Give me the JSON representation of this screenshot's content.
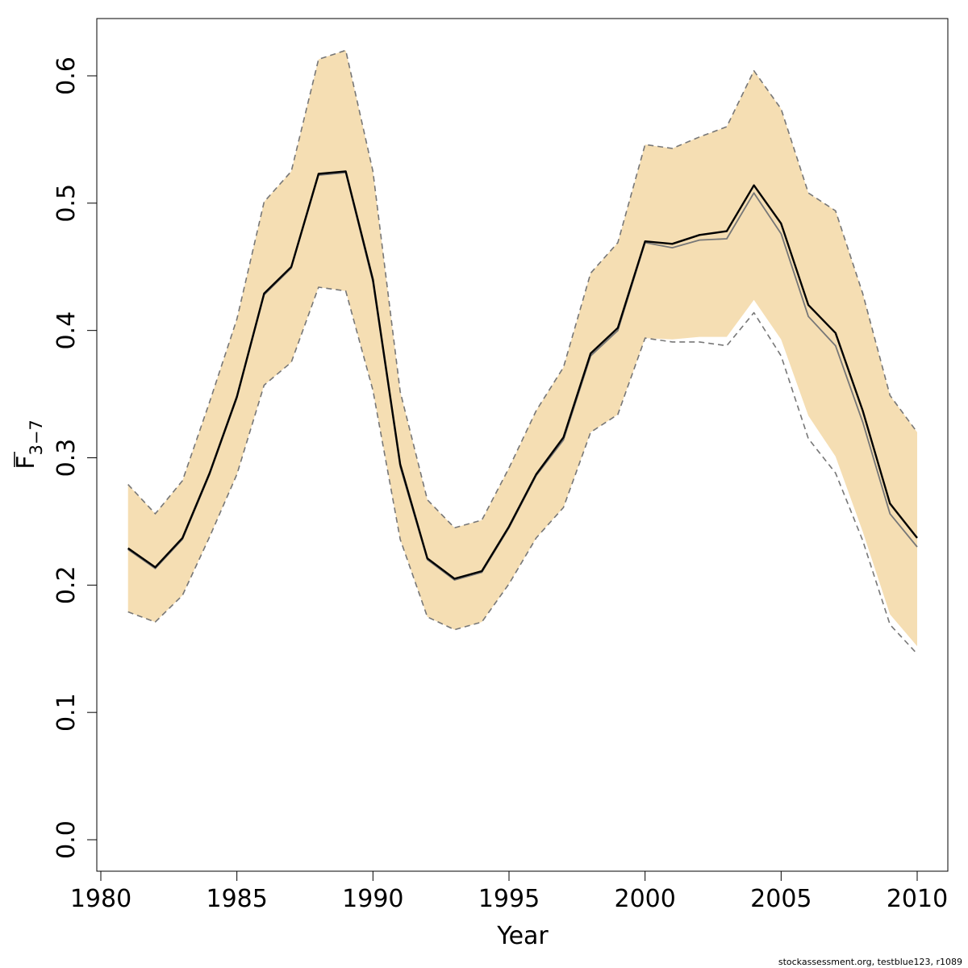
{
  "chart_data": {
    "type": "line",
    "xlabel": "Year",
    "ylabel": {
      "main": "F",
      "subscript": "3−7"
    },
    "xlim": [
      1980,
      2010
    ],
    "ylim": [
      0,
      0.6
    ],
    "x_ticks": [
      1980,
      1985,
      1990,
      1995,
      2000,
      2005,
      2010
    ],
    "y_ticks": [
      "0.0",
      "0.1",
      "0.2",
      "0.3",
      "0.4",
      "0.5",
      "0.6"
    ],
    "grid": false,
    "x": [
      1981,
      1982,
      1983,
      1984,
      1985,
      1986,
      1987,
      1988,
      1989,
      1990,
      1991,
      1992,
      1993,
      1994,
      1995,
      1996,
      1997,
      1998,
      1999,
      2000,
      2001,
      2002,
      2003,
      2004,
      2005,
      2006,
      2007,
      2008,
      2009,
      2010
    ],
    "series": [
      {
        "role": "estimate",
        "color": "#000000",
        "values": [
          0.229,
          0.214,
          0.237,
          0.288,
          0.348,
          0.429,
          0.45,
          0.523,
          0.525,
          0.44,
          0.295,
          0.221,
          0.205,
          0.211,
          0.246,
          0.287,
          0.316,
          0.382,
          0.402,
          0.47,
          0.468,
          0.475,
          0.478,
          0.514,
          0.484,
          0.42,
          0.398,
          0.337,
          0.264,
          0.237
        ]
      },
      {
        "role": "comparison-estimate",
        "color": "#777777",
        "values": [
          0.228,
          0.213,
          0.236,
          0.287,
          0.347,
          0.428,
          0.449,
          0.522,
          0.524,
          0.438,
          0.293,
          0.22,
          0.204,
          0.21,
          0.245,
          0.286,
          0.314,
          0.38,
          0.4,
          0.469,
          0.465,
          0.471,
          0.472,
          0.508,
          0.476,
          0.411,
          0.388,
          0.328,
          0.256,
          0.23
        ]
      },
      {
        "role": "upper-bound",
        "color": "#777777",
        "style": "dashed",
        "values": [
          0.279,
          0.256,
          0.282,
          0.344,
          0.409,
          0.501,
          0.525,
          0.613,
          0.62,
          0.525,
          0.352,
          0.267,
          0.245,
          0.251,
          0.292,
          0.337,
          0.371,
          0.445,
          0.469,
          0.546,
          0.543,
          0.552,
          0.56,
          0.604,
          0.574,
          0.508,
          0.494,
          0.429,
          0.349,
          0.32
        ]
      },
      {
        "role": "lower-bound",
        "color": "#777777",
        "style": "dashed",
        "values": [
          0.179,
          0.171,
          0.192,
          0.238,
          0.287,
          0.357,
          0.375,
          0.434,
          0.431,
          0.353,
          0.236,
          0.175,
          0.165,
          0.171,
          0.201,
          0.237,
          0.261,
          0.32,
          0.334,
          0.394,
          0.391,
          0.391,
          0.388,
          0.414,
          0.38,
          0.315,
          0.288,
          0.235,
          0.169,
          0.146
        ]
      }
    ],
    "band": {
      "color": "#f5deb3",
      "upper": [
        0.279,
        0.256,
        0.282,
        0.344,
        0.409,
        0.501,
        0.525,
        0.613,
        0.62,
        0.525,
        0.352,
        0.267,
        0.245,
        0.251,
        0.292,
        0.337,
        0.371,
        0.445,
        0.469,
        0.546,
        0.543,
        0.552,
        0.56,
        0.604,
        0.574,
        0.508,
        0.494,
        0.429,
        0.349,
        0.32
      ],
      "lower": [
        0.179,
        0.171,
        0.192,
        0.238,
        0.287,
        0.357,
        0.375,
        0.434,
        0.431,
        0.353,
        0.236,
        0.175,
        0.165,
        0.171,
        0.201,
        0.237,
        0.261,
        0.32,
        0.334,
        0.394,
        0.393,
        0.395,
        0.395,
        0.424,
        0.393,
        0.333,
        0.301,
        0.242,
        0.177,
        0.152
      ]
    }
  },
  "footer": "stockassessment.org, testblue123, r1089"
}
